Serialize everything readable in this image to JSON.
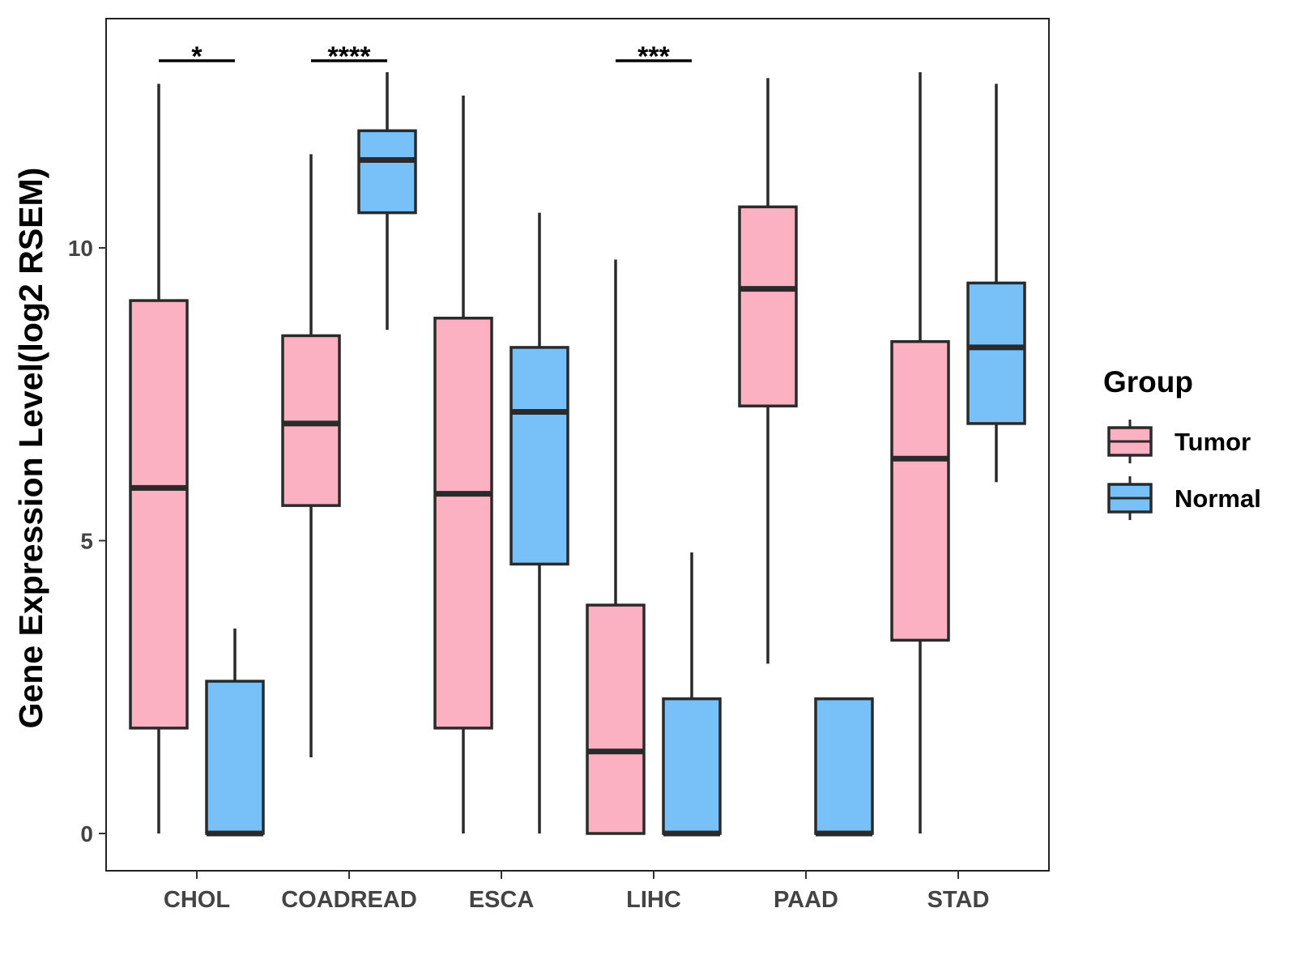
{
  "chart_data": {
    "type": "boxplot",
    "title": "",
    "xlabel": "",
    "ylabel": "Gene Expression Level(log2 RSEM)",
    "ylim": [
      -0.65,
      13.9
    ],
    "yticks": [
      0,
      5,
      10
    ],
    "grid": false,
    "categories": [
      "CHOL",
      "COADREAD",
      "ESCA",
      "LIHC",
      "PAAD",
      "STAD"
    ],
    "legend": {
      "title": "Group",
      "position": "right",
      "entries": [
        "Tumor",
        "Normal"
      ]
    },
    "colors": {
      "Tumor": "#FBB1C1",
      "Normal": "#77C1F8",
      "outline": "#2a2a2a"
    },
    "series": [
      {
        "name": "Tumor",
        "boxes": [
          {
            "category": "CHOL",
            "min": 0,
            "q1": 1.8,
            "median": 5.9,
            "q3": 9.1,
            "max": 12.8
          },
          {
            "category": "COADREAD",
            "min": 1.3,
            "q1": 5.6,
            "median": 7.0,
            "q3": 8.5,
            "max": 11.6
          },
          {
            "category": "ESCA",
            "min": 0,
            "q1": 1.8,
            "median": 5.8,
            "q3": 8.8,
            "max": 12.6
          },
          {
            "category": "LIHC",
            "min": 0,
            "q1": 0,
            "median": 1.4,
            "q3": 3.9,
            "max": 9.8
          },
          {
            "category": "PAAD",
            "min": 2.9,
            "q1": 7.3,
            "median": 9.3,
            "q3": 10.7,
            "max": 12.9
          },
          {
            "category": "STAD",
            "min": 0,
            "q1": 3.3,
            "median": 6.4,
            "q3": 8.4,
            "max": 13.0
          }
        ]
      },
      {
        "name": "Normal",
        "boxes": [
          {
            "category": "CHOL",
            "min": 0,
            "q1": 0,
            "median": 0,
            "q3": 2.6,
            "max": 3.5
          },
          {
            "category": "COADREAD",
            "min": 8.6,
            "q1": 10.6,
            "median": 11.5,
            "q3": 12.0,
            "max": 13.0
          },
          {
            "category": "ESCA",
            "min": 0,
            "q1": 4.6,
            "median": 7.2,
            "q3": 8.3,
            "max": 10.6
          },
          {
            "category": "LIHC",
            "min": 0,
            "q1": 0,
            "median": 0,
            "q3": 2.3,
            "max": 4.8
          },
          {
            "category": "PAAD",
            "min": 0,
            "q1": 0,
            "median": 0,
            "q3": 2.3,
            "max": 2.3
          },
          {
            "category": "STAD",
            "min": 6.0,
            "q1": 7.0,
            "median": 8.3,
            "q3": 9.4,
            "max": 12.8
          }
        ]
      }
    ],
    "significance": [
      {
        "category": "CHOL",
        "label": "*"
      },
      {
        "category": "COADREAD",
        "label": "****"
      },
      {
        "category": "LIHC",
        "label": "***"
      }
    ]
  }
}
